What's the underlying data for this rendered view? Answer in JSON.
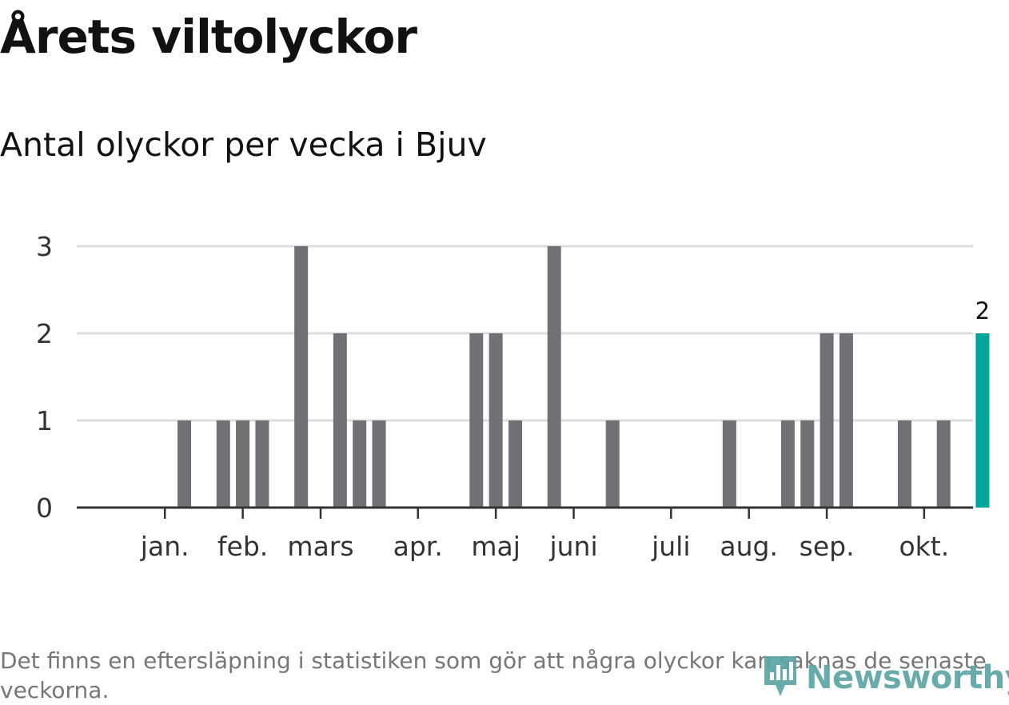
{
  "title": "Årets viltolyckor",
  "subtitle": "Antal olyckor per vecka i Bjuv",
  "footnote": "Det finns en eftersläpning i statistiken som gör att några olyckor kan saknas de senaste veckorna.",
  "brand": {
    "name": "Newsworthy",
    "icon": "newsworthy-logo-icon",
    "color": "#5ba6a4"
  },
  "chart_data": {
    "type": "bar",
    "y_ticks": [
      0,
      1,
      2,
      3
    ],
    "ylim": [
      0,
      3
    ],
    "grid": true,
    "month_labels": [
      {
        "label": "jan.",
        "week": 3
      },
      {
        "label": "feb.",
        "week": 7
      },
      {
        "label": "mars",
        "week": 11
      },
      {
        "label": "apr.",
        "week": 16
      },
      {
        "label": "maj",
        "week": 20
      },
      {
        "label": "juni",
        "week": 24
      },
      {
        "label": "juli",
        "week": 29
      },
      {
        "label": "aug.",
        "week": 33
      },
      {
        "label": "sep.",
        "week": 37
      },
      {
        "label": "okt.",
        "week": 42
      }
    ],
    "weeks": [
      1,
      2,
      3,
      4,
      5,
      6,
      7,
      8,
      9,
      10,
      11,
      12,
      13,
      14,
      15,
      16,
      17,
      18,
      19,
      20,
      21,
      22,
      23,
      24,
      25,
      26,
      27,
      28,
      29,
      30,
      31,
      32,
      33,
      34,
      35,
      36,
      37,
      38,
      39,
      40,
      41,
      42,
      43,
      44,
      45
    ],
    "values": [
      0,
      0,
      0,
      1,
      0,
      1,
      1,
      1,
      0,
      3,
      0,
      2,
      1,
      1,
      0,
      0,
      0,
      0,
      2,
      2,
      1,
      0,
      3,
      0,
      0,
      1,
      0,
      0,
      0,
      0,
      0,
      1,
      0,
      0,
      1,
      1,
      2,
      2,
      0,
      0,
      1,
      0,
      1,
      0,
      2
    ],
    "highlight_index": 44,
    "data_labels": [
      {
        "index": 44,
        "text": "2"
      }
    ],
    "colors": {
      "bar": "#707075",
      "highlight": "#00a498",
      "grid": "#dddddd",
      "axis": "#333333"
    }
  }
}
